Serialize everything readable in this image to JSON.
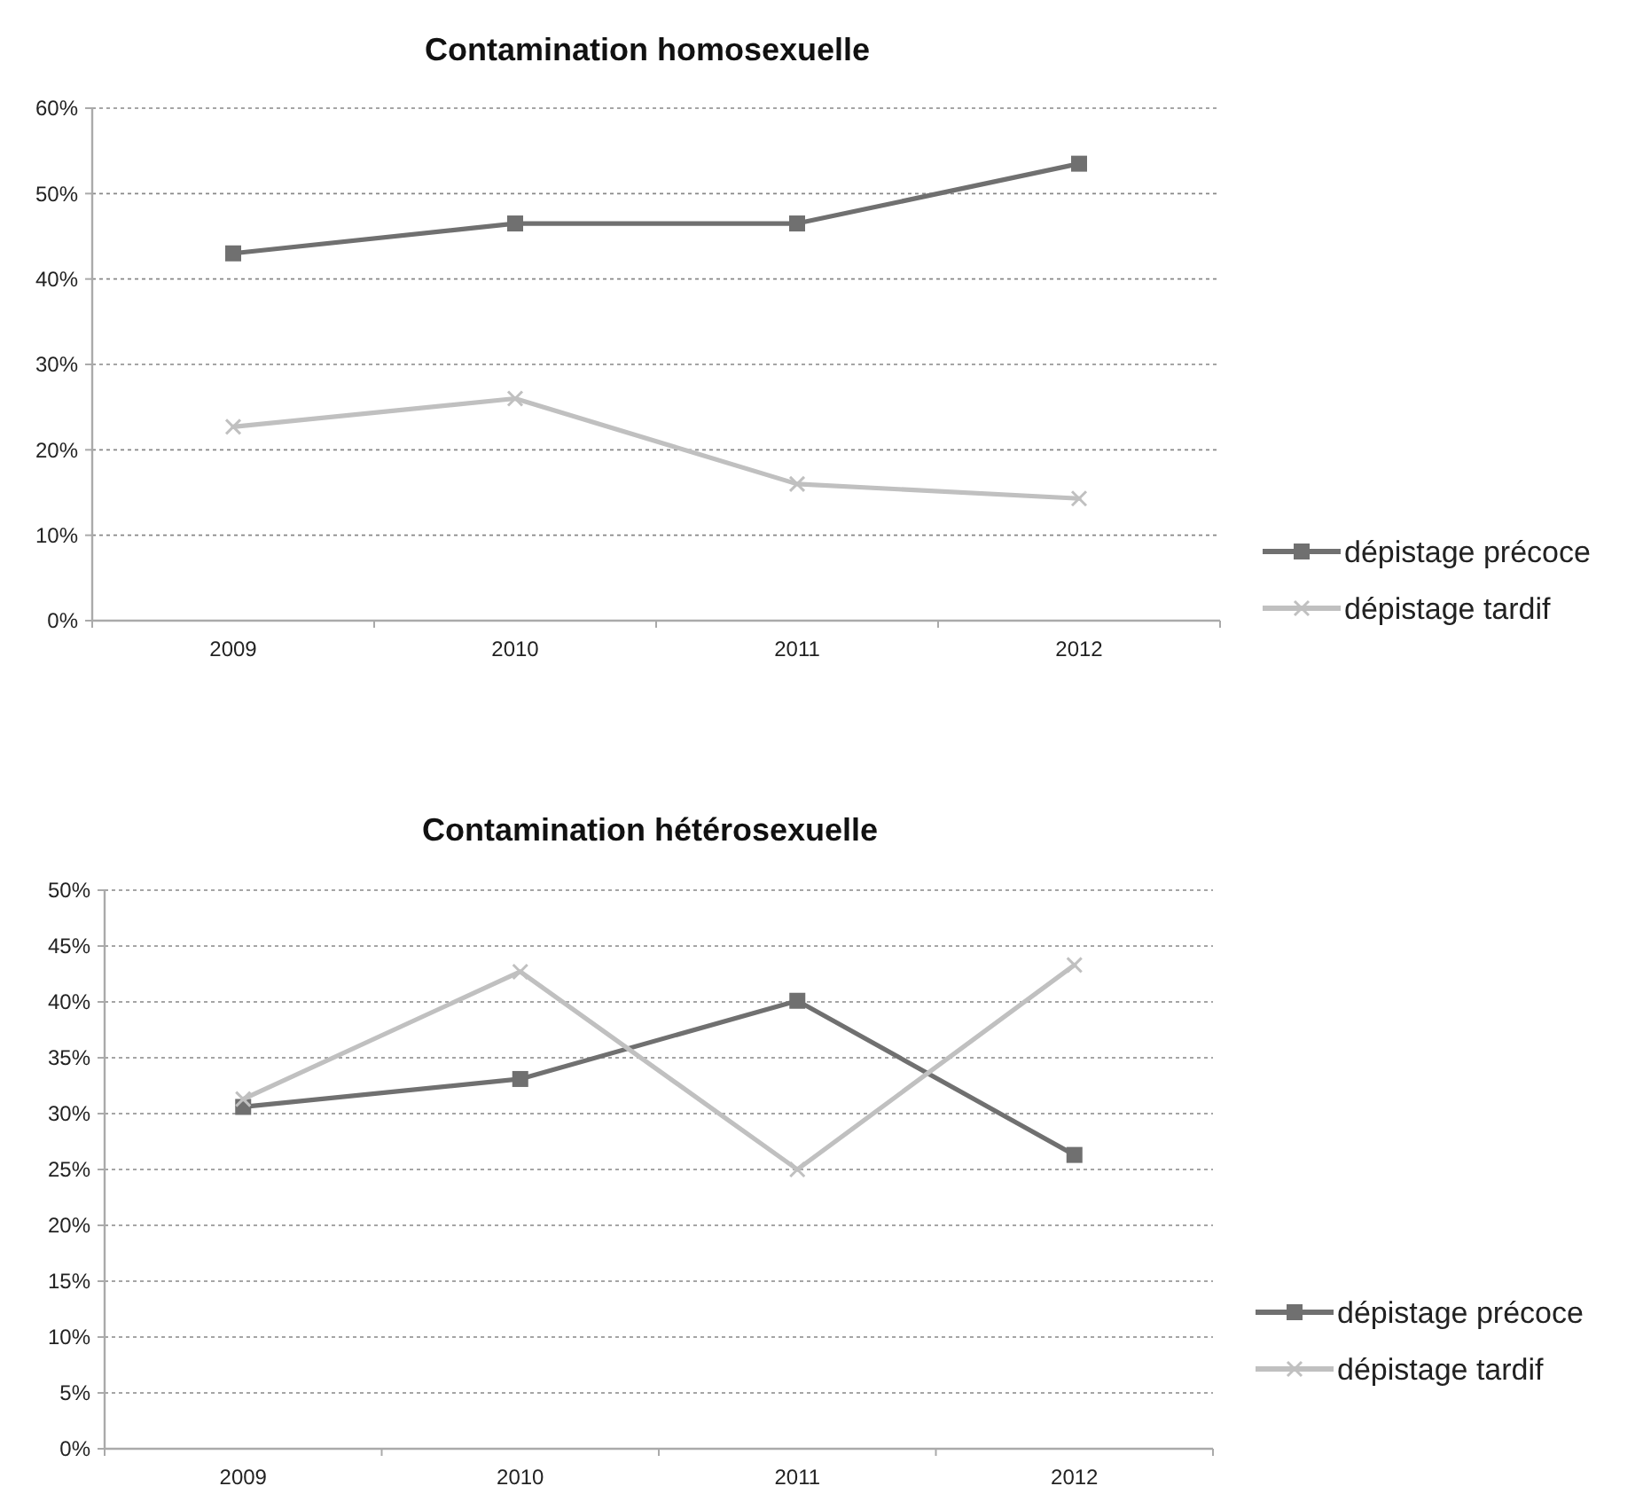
{
  "chart_data": [
    {
      "type": "line",
      "title": "Contamination homosexuelle",
      "categories": [
        "2009",
        "2010",
        "2011",
        "2012"
      ],
      "series": [
        {
          "name": "dépistage précoce",
          "color": "#707070",
          "marker": "square",
          "values": [
            43,
            46.5,
            46.5,
            53.5
          ]
        },
        {
          "name": "dépistage tardif",
          "color": "#c0c0c0",
          "marker": "cross",
          "values": [
            22.7,
            26,
            16,
            14.3
          ]
        }
      ],
      "ylim": [
        0,
        60
      ],
      "yticks": [
        {
          "value": 0,
          "label": "0%"
        },
        {
          "value": 10,
          "label": "10%"
        },
        {
          "value": 20,
          "label": "20%"
        },
        {
          "value": 30,
          "label": "30%"
        },
        {
          "value": 40,
          "label": "40%"
        },
        {
          "value": 50,
          "label": "50%"
        },
        {
          "value": 60,
          "label": "60%"
        }
      ],
      "grid": "y",
      "legend": "bottom right"
    },
    {
      "type": "line",
      "title": "Contamination hétérosexuelle",
      "categories": [
        "2009",
        "2010",
        "2011",
        "2012"
      ],
      "series": [
        {
          "name": "dépistage précoce",
          "color": "#707070",
          "marker": "square",
          "values": [
            30.6,
            33.1,
            40.1,
            26.3
          ]
        },
        {
          "name": "dépistage tardif",
          "color": "#c0c0c0",
          "marker": "cross",
          "values": [
            31.3,
            42.7,
            25,
            43.3
          ]
        }
      ],
      "ylim": [
        0,
        50
      ],
      "yticks": [
        {
          "value": 0,
          "label": "0%"
        },
        {
          "value": 5,
          "label": "5%"
        },
        {
          "value": 10,
          "label": "10%"
        },
        {
          "value": 15,
          "label": "15%"
        },
        {
          "value": 20,
          "label": "20%"
        },
        {
          "value": 25,
          "label": "25%"
        },
        {
          "value": 30,
          "label": "30%"
        },
        {
          "value": 35,
          "label": "35%"
        },
        {
          "value": 40,
          "label": "40%"
        },
        {
          "value": 45,
          "label": "45%"
        },
        {
          "value": 50,
          "label": "50%"
        }
      ],
      "grid": "y",
      "legend": "bottom right"
    }
  ]
}
